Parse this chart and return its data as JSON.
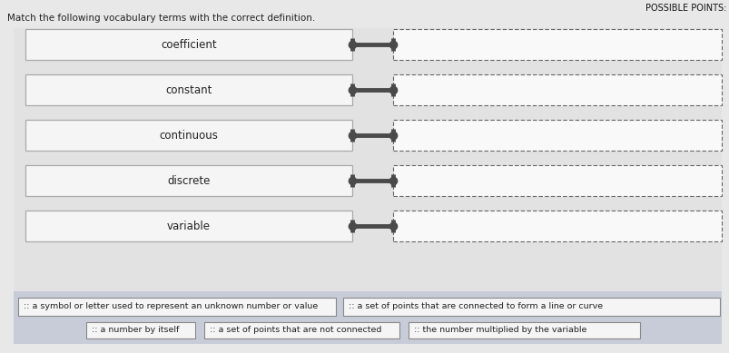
{
  "title": "POSSIBLE POINTS:",
  "subtitle": "Match the following vocabulary terms with the correct definition.",
  "terms": [
    "coefficient",
    "constant",
    "continuous",
    "discrete",
    "variable"
  ],
  "definitions_bottom_row1": [
    ":: a symbol or letter used to represent an unknown number or value",
    ":: a set of points that are connected to form a line or curve"
  ],
  "definitions_bottom_row2": [
    ":: a number by itself",
    ":: a set of points that are not connected",
    ":: the number multiplied by the variable"
  ],
  "main_bg": "#e2e2e2",
  "term_box_facecolor": "#f5f5f5",
  "term_box_edge": "#aaaaaa",
  "def_box_facecolor": "#f9f9f9",
  "def_box_edge": "#666666",
  "connector_color": "#4a4a4a",
  "text_color": "#222222",
  "title_color": "#111111",
  "subtitle_color": "#222222",
  "bottom_bg": "#c8ccd8",
  "bottom_def_box_color": "#f5f5f5",
  "bottom_def_box_edge": "#888888",
  "figure_bg": "#e8e8e8"
}
